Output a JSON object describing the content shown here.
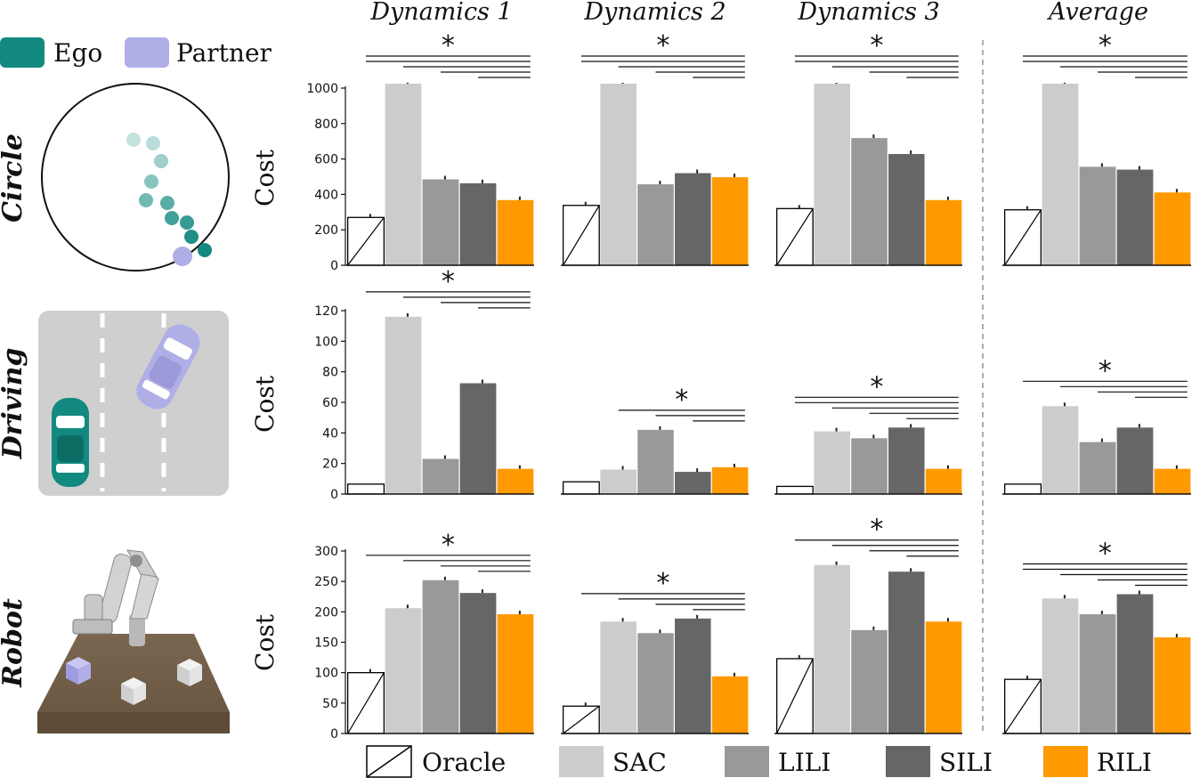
{
  "column_titles": [
    "Dynamics 1",
    "Dynamics 2",
    "Dynamics 3",
    "Average"
  ],
  "row_titles": [
    "Circle",
    "Driving",
    "Robot"
  ],
  "ylabel": "Cost",
  "top_legend": {
    "ego": "Ego",
    "partner": "Partner"
  },
  "bottom_legend": [
    "Oracle",
    "SAC",
    "LILI",
    "SILI",
    "RILI"
  ],
  "colors": {
    "oracle": "#ffffff",
    "sac": "#cccccc",
    "lili": "#999999",
    "sili": "#666666",
    "rili": "#ff9900",
    "ego": "#138a80",
    "partner": "#b0aee6"
  },
  "significance_marker": "*",
  "chart_data": [
    {
      "type": "bar",
      "row": "Circle",
      "panel": "Dynamics 1",
      "categories": [
        "Oracle",
        "SAC",
        "LILI",
        "SILI",
        "RILI"
      ],
      "values": [
        270,
        1025,
        485,
        463,
        368
      ],
      "ylim": [
        0,
        1000
      ],
      "yticks": [
        0,
        200,
        400,
        600,
        800,
        1000
      ],
      "significance_lines": 5
    },
    {
      "type": "bar",
      "row": "Circle",
      "panel": "Dynamics 2",
      "categories": [
        "Oracle",
        "SAC",
        "LILI",
        "SILI",
        "RILI"
      ],
      "values": [
        338,
        1025,
        457,
        520,
        497
      ],
      "ylim": [
        0,
        1000
      ],
      "yticks": [
        0,
        200,
        400,
        600,
        800,
        1000
      ],
      "significance_lines": 5
    },
    {
      "type": "bar",
      "row": "Circle",
      "panel": "Dynamics 3",
      "categories": [
        "Oracle",
        "SAC",
        "LILI",
        "SILI",
        "RILI"
      ],
      "values": [
        320,
        1025,
        718,
        628,
        368
      ],
      "ylim": [
        0,
        1000
      ],
      "yticks": [
        0,
        200,
        400,
        600,
        800,
        1000
      ],
      "significance_lines": 5
    },
    {
      "type": "bar",
      "row": "Circle",
      "panel": "Average",
      "categories": [
        "Oracle",
        "SAC",
        "LILI",
        "SILI",
        "RILI"
      ],
      "values": [
        313,
        1025,
        556,
        540,
        411
      ],
      "ylim": [
        0,
        1000
      ],
      "yticks": [
        0,
        200,
        400,
        600,
        800,
        1000
      ],
      "significance_lines": 5
    },
    {
      "type": "bar",
      "row": "Driving",
      "panel": "Dynamics 1",
      "categories": [
        "Oracle",
        "SAC",
        "LILI",
        "SILI",
        "RILI"
      ],
      "values": [
        6.5,
        116,
        23,
        72.5,
        16.5
      ],
      "ylim": [
        0,
        120
      ],
      "yticks": [
        0,
        20,
        40,
        60,
        80,
        100,
        120
      ],
      "significance_lines": 4
    },
    {
      "type": "bar",
      "row": "Driving",
      "panel": "Dynamics 2",
      "categories": [
        "Oracle",
        "SAC",
        "LILI",
        "SILI",
        "RILI"
      ],
      "values": [
        8,
        16,
        42,
        14.5,
        17.5
      ],
      "ylim": [
        0,
        120
      ],
      "yticks": [
        0,
        20,
        40,
        60,
        80,
        100,
        120
      ],
      "significance_lines": 3
    },
    {
      "type": "bar",
      "row": "Driving",
      "panel": "Dynamics 3",
      "categories": [
        "Oracle",
        "SAC",
        "LILI",
        "SILI",
        "RILI"
      ],
      "values": [
        5,
        41,
        36.5,
        43.5,
        16.5
      ],
      "ylim": [
        0,
        120
      ],
      "yticks": [
        0,
        20,
        40,
        60,
        80,
        100,
        120
      ],
      "significance_lines": 5
    },
    {
      "type": "bar",
      "row": "Driving",
      "panel": "Average",
      "categories": [
        "Oracle",
        "SAC",
        "LILI",
        "SILI",
        "RILI"
      ],
      "values": [
        6.5,
        57.5,
        34,
        43.5,
        16.5
      ],
      "ylim": [
        0,
        120
      ],
      "yticks": [
        0,
        20,
        40,
        60,
        80,
        100,
        120
      ],
      "significance_lines": 4
    },
    {
      "type": "bar",
      "row": "Robot",
      "panel": "Dynamics 1",
      "categories": [
        "Oracle",
        "SAC",
        "LILI",
        "SILI",
        "RILI"
      ],
      "values": [
        100,
        206,
        252,
        231,
        196
      ],
      "ylim": [
        0,
        300
      ],
      "yticks": [
        0,
        50,
        100,
        150,
        200,
        250,
        300
      ],
      "significance_lines": 4
    },
    {
      "type": "bar",
      "row": "Robot",
      "panel": "Dynamics 2",
      "categories": [
        "Oracle",
        "SAC",
        "LILI",
        "SILI",
        "RILI"
      ],
      "values": [
        45,
        184,
        165,
        189,
        94
      ],
      "ylim": [
        0,
        300
      ],
      "yticks": [
        0,
        50,
        100,
        150,
        200,
        250,
        300
      ],
      "significance_lines": 4
    },
    {
      "type": "bar",
      "row": "Robot",
      "panel": "Dynamics 3",
      "categories": [
        "Oracle",
        "SAC",
        "LILI",
        "SILI",
        "RILI"
      ],
      "values": [
        123,
        277,
        170,
        266,
        184
      ],
      "ylim": [
        0,
        300
      ],
      "yticks": [
        0,
        50,
        100,
        150,
        200,
        250,
        300
      ],
      "significance_lines": 4
    },
    {
      "type": "bar",
      "row": "Robot",
      "panel": "Average",
      "categories": [
        "Oracle",
        "SAC",
        "LILI",
        "SILI",
        "RILI"
      ],
      "values": [
        89,
        222,
        196,
        229,
        158
      ],
      "ylim": [
        0,
        300
      ],
      "yticks": [
        0,
        50,
        100,
        150,
        200,
        250,
        300
      ],
      "significance_lines": 5
    }
  ]
}
